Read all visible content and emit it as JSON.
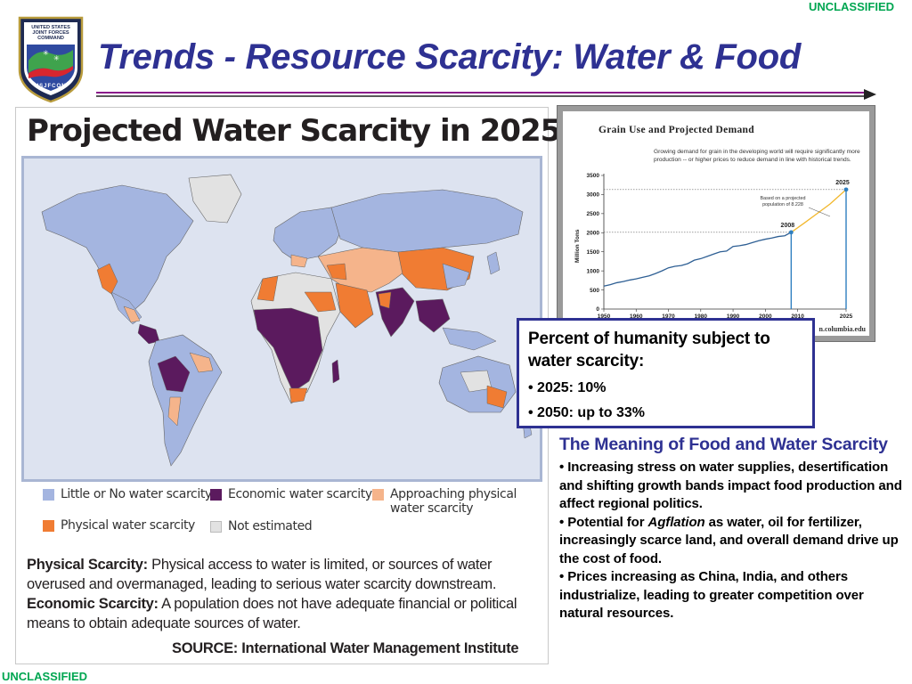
{
  "classification": "UNCLASSIFIED",
  "seal": {
    "top_text": [
      "UNITED STATES",
      "JOINT FORCES",
      "COMMAND"
    ],
    "bottom_text": "USJFCOM"
  },
  "title": "Trends - Resource Scarcity: Water & Food",
  "water_map": {
    "heading": "Projected Water Scarcity in 2025",
    "legend": [
      {
        "label": "Little or No water scarcity",
        "color": "#a4b5e0"
      },
      {
        "label": "Economic water scarcity",
        "color": "#5b1a5e"
      },
      {
        "label": "Approaching physical water scarcity",
        "color": "#f5b48b"
      },
      {
        "label": "Physical water scarcity",
        "color": "#f07c33"
      },
      {
        "label": "Not estimated",
        "color": "#e2e2e2"
      }
    ],
    "physical_term": "Physical Scarcity:",
    "physical_text": "Physical access to water is limited, or sources of water overused and overmanaged, leading to serious water scarcity downstream.",
    "economic_term": "Economic Scarcity:",
    "economic_text": "A population does not have adequate financial or political means to obtain adequate sources of water.",
    "source": "SOURCE: International Water Management Institute"
  },
  "grain_chart": {
    "title": "Grain Use and Projected Demand",
    "subtitle": "Growing demand for grain in the developing world will require significantly more production -- or higher prices to reduce demand in line with historical trends.",
    "annotation": "Based on a projected population of 8.228",
    "credit": "n.columbia.edu",
    "chart_data": {
      "type": "line",
      "title": "Grain Use and Projected Demand",
      "ylabel": "Million Tons",
      "xlim": [
        1950,
        2025
      ],
      "ylim": [
        0,
        3500
      ],
      "x_ticks": [
        "1950",
        "1960",
        "1970",
        "1980",
        "1990",
        "2000",
        "2010",
        "2025"
      ],
      "y_ticks": [
        "0",
        "500",
        "1000",
        "1500",
        "2000",
        "2500",
        "3000",
        "3500"
      ],
      "markers": [
        {
          "label": "2008",
          "x": 2008,
          "y": 2010
        },
        {
          "label": "2025",
          "x": 2025,
          "y": 3130
        }
      ],
      "series": [
        {
          "x": [
            1950,
            1952,
            1954,
            1956,
            1958,
            1960,
            1962,
            1964,
            1966,
            1968,
            1970,
            1972,
            1974,
            1976,
            1978,
            1980,
            1982,
            1984,
            1986,
            1988,
            1990,
            1992,
            1994,
            1996,
            1998,
            2000,
            2002,
            2004,
            2006,
            2008
          ],
          "y": [
            600,
            640,
            690,
            720,
            760,
            790,
            830,
            870,
            930,
            1000,
            1080,
            1120,
            1140,
            1190,
            1280,
            1320,
            1380,
            1440,
            1500,
            1520,
            1640,
            1660,
            1690,
            1740,
            1790,
            1830,
            1860,
            1900,
            1920,
            2010
          ],
          "color": "#2e5f94"
        },
        {
          "x": [
            2008,
            2012,
            2016,
            2020,
            2025
          ],
          "y": [
            2010,
            2250,
            2500,
            2750,
            3130
          ],
          "color": "#f2b72b"
        }
      ]
    }
  },
  "callout": {
    "heading": "Percent of humanity subject to water scarcity:",
    "items": [
      "2025: 10%",
      "2050: up to 33%"
    ]
  },
  "meaning": {
    "heading": "The Meaning of Food and Water Scarcity",
    "bullet1": "Increasing stress on water supplies, desertification and shifting growth bands impact food production and affect regional politics.",
    "bullet2_pre": "Potential for ",
    "bullet2_em": "Agflation",
    "bullet2_post": " as water, oil for fertilizer, increasingly scarce land, and overall demand drive up the cost of food.",
    "bullet3": "Prices increasing as China, India, and others industrialize, leading to greater competition over natural resources."
  }
}
